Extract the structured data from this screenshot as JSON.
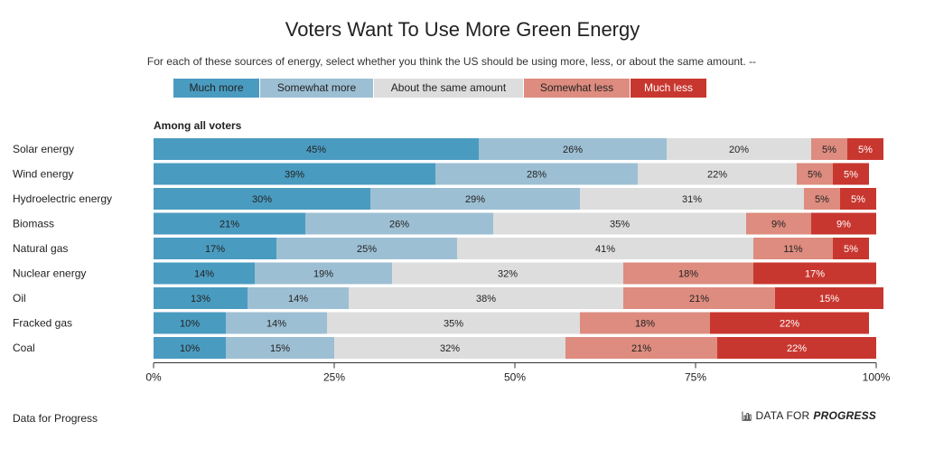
{
  "title": "Voters Want To Use More Green Energy",
  "subtitle": "For each of these sources of energy, select whether you think the US should be using more, less, or about the same amount. --",
  "legend": [
    {
      "label": "Much more",
      "color": "#4a9bc0"
    },
    {
      "label": "Somewhat more",
      "color": "#9dbfd3"
    },
    {
      "label": "About the same amount",
      "color": "#dddddd"
    },
    {
      "label": "Somewhat less",
      "color": "#dd8c7f"
    },
    {
      "label": "Much less",
      "color": "#c8372f"
    }
  ],
  "footer": {
    "source": "Data for Progress",
    "brand_prefix": "DATA FOR",
    "brand_strong": "PROGRESS",
    "brand_icon": "bar-chart-icon"
  },
  "chart_data": {
    "type": "bar",
    "orientation": "horizontal",
    "stacked": true,
    "title": "Voters Want To Use More Green Energy",
    "subtitle": "For each of these sources of energy, select whether you think the US should be using more, less, or about the same amount. --",
    "panel_label": "Among all voters",
    "categories": [
      "Solar energy",
      "Wind energy",
      "Hydroelectric energy",
      "Biomass",
      "Natural gas",
      "Nuclear energy",
      "Oil",
      "Fracked gas",
      "Coal"
    ],
    "series": [
      {
        "name": "Much more",
        "color": "#4a9bc0",
        "text_color": "#222222",
        "values": [
          45,
          39,
          30,
          21,
          17,
          14,
          13,
          10,
          10
        ]
      },
      {
        "name": "Somewhat more",
        "color": "#9dbfd3",
        "text_color": "#222222",
        "values": [
          26,
          28,
          29,
          26,
          25,
          19,
          14,
          14,
          15
        ]
      },
      {
        "name": "About the same amount",
        "color": "#dddddd",
        "text_color": "#222222",
        "values": [
          20,
          22,
          31,
          35,
          41,
          32,
          38,
          35,
          32
        ]
      },
      {
        "name": "Somewhat less",
        "color": "#dd8c7f",
        "text_color": "#222222",
        "values": [
          5,
          5,
          5,
          9,
          11,
          18,
          21,
          18,
          21
        ]
      },
      {
        "name": "Much less",
        "color": "#c8372f",
        "text_color": "#ffffff",
        "values": [
          5,
          5,
          5,
          9,
          5,
          17,
          15,
          22,
          22
        ]
      }
    ],
    "xlim": [
      0,
      100
    ],
    "x_ticks": [
      {
        "value": 0,
        "label": "0%"
      },
      {
        "value": 25,
        "label": "25%"
      },
      {
        "value": 50,
        "label": "50%"
      },
      {
        "value": 75,
        "label": "75%"
      },
      {
        "value": 100,
        "label": "100%"
      }
    ],
    "value_suffix": "%",
    "grid": false,
    "legend_position": "top"
  }
}
